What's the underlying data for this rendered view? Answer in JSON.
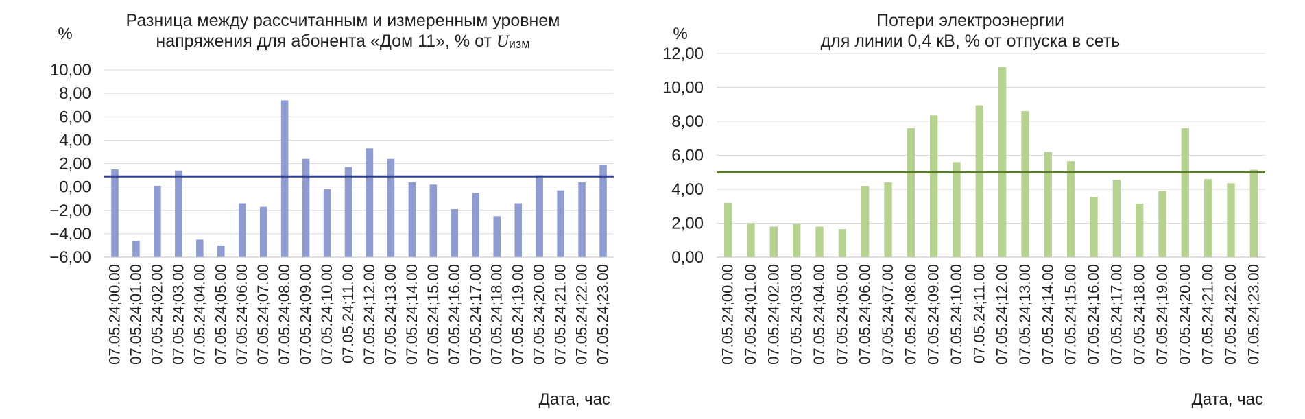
{
  "chart_data": [
    {
      "type": "bar",
      "title_line1": "Разница между рассчитанным и измеренным уровнем",
      "title_line2_prefix": "напряжения для абонента «Дом 11», % от ",
      "title_symbol": "U",
      "title_subscript": "изм",
      "ylabel": "%",
      "xlabel": "Дата, час",
      "ylim": [
        -6,
        10
      ],
      "ytick_values": [
        -6,
        -4,
        -2,
        0,
        2,
        4,
        6,
        8,
        10
      ],
      "yticks": [
        "−6,00",
        "−4,00",
        "−2,00",
        "0,00",
        "2,00",
        "4,00",
        "6,00",
        "8,00",
        "10,00"
      ],
      "grid": true,
      "bar_color": "#8E9CD1",
      "line_color": "#2E3F8F",
      "categories": [
        "07.05.24;00.00",
        "07.05.24;01.00",
        "07.05.24;02.00",
        "07.05.24;03.00",
        "07.05.24;04.00",
        "07.05.24;05.00",
        "07.05.24;06.00",
        "07.05.24;07.00",
        "07.05.24;08.00",
        "07.05.24;09.00",
        "07.05.24;10.00",
        "07.05.24;11.00",
        "07.05.24;12.00",
        "07.05.24;13.00",
        "07.05.24;14.00",
        "07.05.24;15.00",
        "07.05.24;16.00",
        "07.05.24;17.00",
        "07.05.24;18.00",
        "07.05.24;19.00",
        "07.05.24;20.00",
        "07.05.24;21.00",
        "07.05.24;22.00",
        "07.05.24;23.00"
      ],
      "values": [
        1.5,
        -4.6,
        0.1,
        1.4,
        -4.5,
        -5.0,
        -1.4,
        -1.7,
        7.4,
        2.4,
        -0.2,
        1.7,
        3.3,
        2.4,
        0.4,
        0.2,
        -1.9,
        -0.5,
        -2.5,
        -1.4,
        1.0,
        -0.3,
        0.4,
        1.9
      ],
      "reference_line": 0.9
    },
    {
      "type": "bar",
      "title_line1": "Потери электроэнергии",
      "title_line2": "для линии 0,4 кВ, % от отпуска в сеть",
      "ylabel": "%",
      "xlabel": "Дата, час",
      "ylim": [
        0,
        12
      ],
      "ytick_values": [
        0,
        2,
        4,
        6,
        8,
        10,
        12
      ],
      "yticks": [
        "0,00",
        "2,00",
        "4,00",
        "6,00",
        "8,00",
        "10,00",
        "12,00"
      ],
      "grid": true,
      "bar_color": "#B5D28E",
      "line_color": "#5A7D2A",
      "categories": [
        "07.05.24;00.00",
        "07.05.24;01.00",
        "07.05.24;02.00",
        "07.05.24;03.00",
        "07.05.24;04.00",
        "07.05.24;05.00",
        "07.05.24;06.00",
        "07.05.24;07.00",
        "07.05.24;08.00",
        "07.05.24;09.00",
        "07.05.24;10.00",
        "07.05.24;11.00",
        "07.05.24;12.00",
        "07.05.24;13.00",
        "07.05.24;14.00",
        "07.05.24;15.00",
        "07.05.24;16.00",
        "07.05.24;17.00",
        "07.05.24;18.00",
        "07.05.24;19.00",
        "07.05.24;20.00",
        "07.05.24;21.00",
        "07.05.24;22.00",
        "07.05.24;23.00"
      ],
      "values": [
        3.2,
        2.0,
        1.8,
        1.95,
        1.8,
        1.65,
        4.2,
        4.4,
        7.6,
        8.35,
        5.6,
        8.95,
        11.2,
        8.6,
        6.2,
        5.65,
        3.55,
        4.55,
        3.15,
        3.9,
        7.6,
        4.6,
        4.35,
        5.15
      ],
      "reference_line": 5.0
    }
  ]
}
